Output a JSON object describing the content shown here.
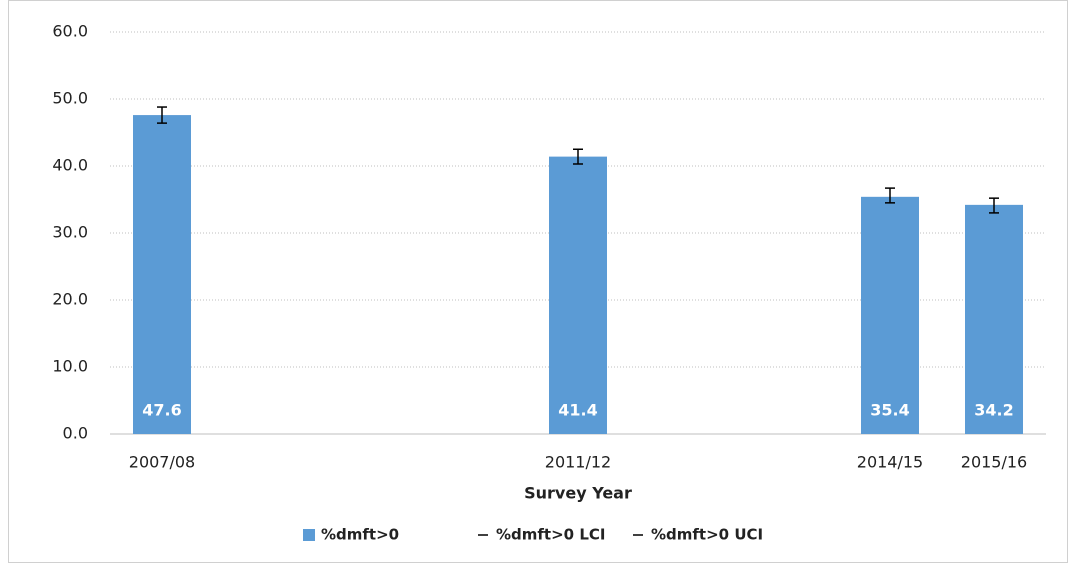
{
  "chart_data": {
    "type": "bar",
    "categories": [
      "2007/08",
      null,
      null,
      null,
      "2011/12",
      null,
      null,
      "2014/15",
      "2015/16"
    ],
    "series": [
      {
        "name": "%dmft>0",
        "color": "#5b9bd5",
        "values": [
          47.6,
          null,
          null,
          null,
          41.4,
          null,
          null,
          35.4,
          34.2
        ]
      },
      {
        "name": "%dmft>0 LCI",
        "color": "#000000",
        "values": [
          46.4,
          null,
          null,
          null,
          40.3,
          null,
          null,
          34.5,
          33.0
        ]
      },
      {
        "name": "%dmft>0 UCI",
        "color": "#000000",
        "values": [
          48.8,
          null,
          null,
          null,
          42.5,
          null,
          null,
          36.7,
          35.2
        ]
      }
    ],
    "xlabel": "Survey Year",
    "ylim": [
      0,
      60
    ],
    "yticks": [
      {
        "value": 0,
        "label": "0.0"
      },
      {
        "value": 10,
        "label": "10.0"
      },
      {
        "value": 20,
        "label": "20.0"
      },
      {
        "value": 30,
        "label": "30.0"
      },
      {
        "value": 40,
        "label": "40.0"
      },
      {
        "value": 50,
        "label": "50.0"
      },
      {
        "value": 60,
        "label": "60.0"
      }
    ],
    "grid": true,
    "legend": "bottom"
  }
}
